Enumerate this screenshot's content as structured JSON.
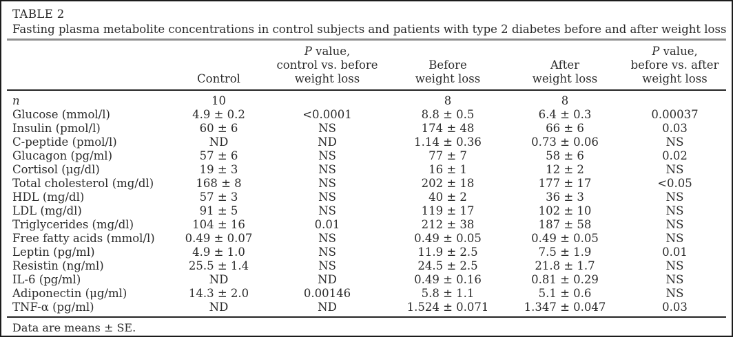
{
  "table": {
    "label": "TABLE 2",
    "caption": "Fasting plasma metabolite concentrations in control subjects and patients with type 2 diabetes before and after weight loss",
    "columns": [
      {
        "id": "metabolite",
        "lines": []
      },
      {
        "id": "control",
        "lines": [
          "Control"
        ]
      },
      {
        "id": "p-control-vs-before",
        "lines": [
          "P value,",
          "control vs. before",
          "weight loss"
        ]
      },
      {
        "id": "before-weight-loss",
        "lines": [
          "Before",
          "weight loss"
        ]
      },
      {
        "id": "after-weight-loss",
        "lines": [
          "After",
          "weight loss"
        ]
      },
      {
        "id": "p-before-vs-after",
        "lines": [
          "P value,",
          "before vs. after",
          "weight loss"
        ]
      }
    ],
    "rows": [
      {
        "label": "n",
        "label_italic": true,
        "cells": [
          "10",
          "",
          "8",
          "8",
          ""
        ]
      },
      {
        "label": "Glucose (mmol/l)",
        "cells": [
          "4.9 ± 0.2",
          "<0.0001",
          "8.8 ± 0.5",
          "6.4 ± 0.3",
          "0.00037"
        ]
      },
      {
        "label": "Insulin (pmol/l)",
        "cells": [
          "60 ± 6",
          "NS",
          "174 ± 48",
          "66 ± 6",
          "0.03"
        ]
      },
      {
        "label": "C-peptide (pmol/l)",
        "cells": [
          "ND",
          "ND",
          "1.14 ± 0.36",
          "0.73 ± 0.06",
          "NS"
        ]
      },
      {
        "label": "Glucagon (pg/ml)",
        "cells": [
          "57 ± 6",
          "NS",
          "77 ± 7",
          "58 ± 6",
          "0.02"
        ]
      },
      {
        "label": "Cortisol (μg/dl)",
        "cells": [
          "19 ± 3",
          "NS",
          "16 ± 1",
          "12 ± 2",
          "NS"
        ]
      },
      {
        "label": "Total cholesterol (mg/dl)",
        "cells": [
          "168 ± 8",
          "NS",
          "202 ± 18",
          "177 ± 17",
          "<0.05"
        ]
      },
      {
        "label": "HDL (mg/dl)",
        "cells": [
          "57 ± 3",
          "NS",
          "40 ± 2",
          "36 ± 3",
          "NS"
        ]
      },
      {
        "label": "LDL (mg/dl)",
        "cells": [
          "91 ± 5",
          "NS",
          "119 ± 17",
          "102 ± 10",
          "NS"
        ]
      },
      {
        "label": "Triglycerides (mg/dl)",
        "cells": [
          "104 ± 16",
          "0.01",
          "212 ± 38",
          "187 ± 58",
          "NS"
        ]
      },
      {
        "label": "Free fatty acids (mmol/l)",
        "cells": [
          "0.49 ± 0.07",
          "NS",
          "0.49 ± 0.05",
          "0.49 ± 0.05",
          "NS"
        ]
      },
      {
        "label": "Leptin (pg/ml)",
        "cells": [
          "4.9 ± 1.0",
          "NS",
          "11.9 ± 2.5",
          "7.5 ± 1.9",
          "0.01"
        ]
      },
      {
        "label": "Resistin (ng/ml)",
        "cells": [
          "25.5 ± 1.4",
          "NS",
          "24.5 ± 2.5",
          "21.8 ± 1.7",
          "NS"
        ]
      },
      {
        "label": "IL-6 (pg/ml)",
        "cells": [
          "ND",
          "ND",
          "0.49 ± 0.16",
          "0.81 ± 0.29",
          "NS"
        ]
      },
      {
        "label": "Adiponectin (μg/ml)",
        "cells": [
          "14.3 ± 2.0",
          "0.00146",
          "5.8 ± 1.1",
          "5.1 ± 0.6",
          "NS"
        ]
      },
      {
        "label": "TNF-α (pg/ml)",
        "cells": [
          "ND",
          "ND",
          "1.524 ± 0.071",
          "1.347 ± 0.047",
          "0.03"
        ]
      }
    ],
    "footnote": "Data are means ± SE."
  }
}
